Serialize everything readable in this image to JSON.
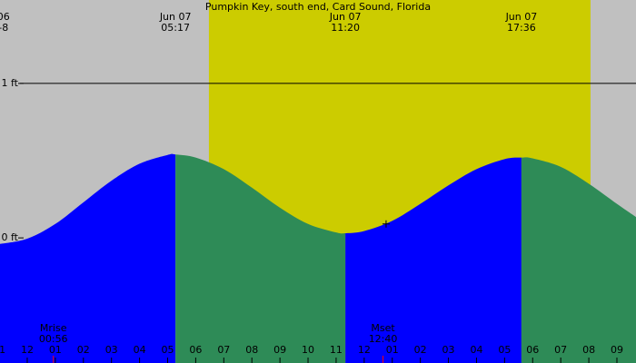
{
  "chart_data": {
    "type": "tide",
    "title": "Pumpkin Key, south end, Card Sound, Florida",
    "xlim": [
      -0.97,
      21.68
    ],
    "ylim": [
      -0.81,
      1.54
    ],
    "yticks": [
      {
        "value": 1,
        "label": "1 ft"
      },
      {
        "value": 0,
        "label": "0 ft"
      }
    ],
    "reference_line": 1,
    "x": [
      -1,
      0,
      1,
      2,
      3,
      4,
      5,
      5.28,
      6,
      7,
      8,
      9,
      10,
      11,
      11.33,
      12,
      13,
      14,
      15,
      16,
      17,
      17.6,
      18,
      19,
      20,
      21,
      21.68
    ],
    "values": [
      -0.04,
      -0.005,
      0.09,
      0.23,
      0.37,
      0.48,
      0.537,
      0.54,
      0.52,
      0.445,
      0.325,
      0.195,
      0.09,
      0.035,
      0.03,
      0.044,
      0.11,
      0.22,
      0.34,
      0.445,
      0.51,
      0.52,
      0.515,
      0.46,
      0.35,
      0.22,
      0.135
    ],
    "rising_color": "#0000ff",
    "falling_color": "#2e8b57",
    "background_color": "#c0c0c0",
    "daylight": [
      6.47,
      20.06
    ],
    "daylight_color": "#cccc00",
    "events": [
      {
        "date": "06",
        "time": "-8",
        "x": -0.85
      },
      {
        "date": "Jun 07",
        "time": "05:17",
        "x": 5.28
      },
      {
        "date": "Jun 07",
        "time": "11:20",
        "x": 11.33
      },
      {
        "date": "Jun 07",
        "time": "17:36",
        "x": 17.6
      }
    ],
    "moon": [
      {
        "label": "Mrise",
        "time": "00:56",
        "x": 0.93
      },
      {
        "label": "Mset",
        "time": "12:40",
        "x": 12.67
      }
    ],
    "marker": {
      "x": 12.78,
      "value": 0.09
    },
    "xticks": [
      {
        "value": -1,
        "label": "11"
      },
      {
        "value": 0,
        "label": "12"
      },
      {
        "value": 1,
        "label": "01"
      },
      {
        "value": 2,
        "label": "02"
      },
      {
        "value": 3,
        "label": "03"
      },
      {
        "value": 4,
        "label": "04"
      },
      {
        "value": 5,
        "label": "05"
      },
      {
        "value": 6,
        "label": "06"
      },
      {
        "value": 7,
        "label": "07"
      },
      {
        "value": 8,
        "label": "08"
      },
      {
        "value": 9,
        "label": "09"
      },
      {
        "value": 10,
        "label": "10"
      },
      {
        "value": 11,
        "label": "11"
      },
      {
        "value": 12,
        "label": "12"
      },
      {
        "value": 13,
        "label": "01"
      },
      {
        "value": 14,
        "label": "02"
      },
      {
        "value": 15,
        "label": "03"
      },
      {
        "value": 16,
        "label": "04"
      },
      {
        "value": 17,
        "label": "05"
      },
      {
        "value": 18,
        "label": "06"
      },
      {
        "value": 19,
        "label": "07"
      },
      {
        "value": 20,
        "label": "08"
      },
      {
        "value": 21,
        "label": "09"
      }
    ]
  }
}
